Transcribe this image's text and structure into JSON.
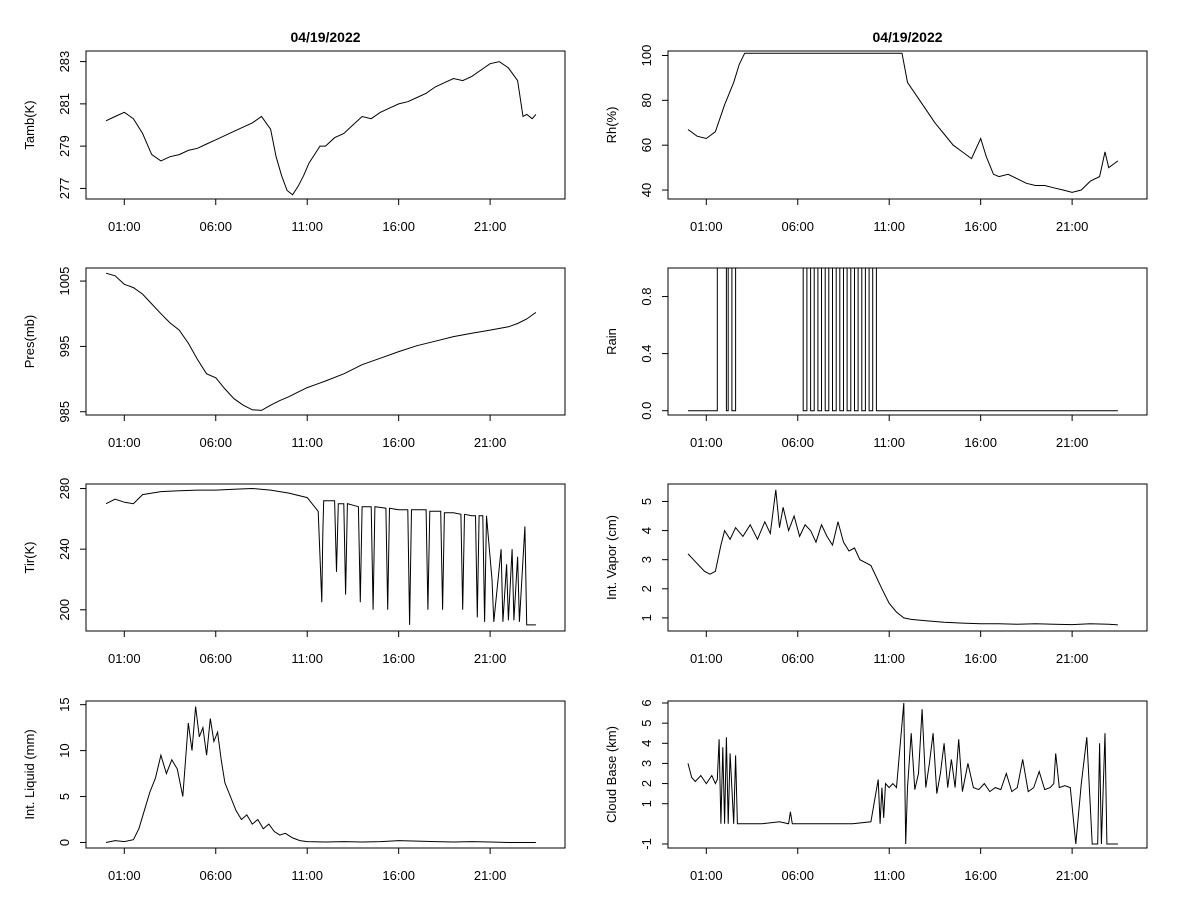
{
  "chart_data": [
    {
      "type": "line",
      "title": "04/19/2022",
      "xlabel": "",
      "ylabel": "Tamb(K)",
      "xlim": [
        0,
        24
      ],
      "ylim": [
        276.5,
        283.5
      ],
      "yticks": [
        277,
        279,
        281,
        283
      ],
      "ytick_labels": [
        "277",
        "279",
        "281",
        "283"
      ],
      "x_ticks": [
        "01:00",
        "06:00",
        "11:00",
        "16:00",
        "21:00"
      ],
      "grid": false,
      "series": [
        {
          "x": [
            0,
            0.5,
            1,
            1.5,
            2,
            2.5,
            3,
            3.5,
            4,
            4.5,
            5,
            5.5,
            6,
            6.5,
            7,
            7.5,
            8,
            8.5,
            9,
            9.3,
            9.6,
            9.9,
            10.2,
            10.5,
            10.8,
            11.1,
            11.4,
            11.7,
            12,
            12.5,
            13,
            13.5,
            14,
            14.5,
            15,
            15.5,
            16,
            16.5,
            17,
            17.5,
            18,
            18.5,
            19,
            19.5,
            20,
            20.5,
            21,
            21.5,
            22,
            22.5,
            22.8,
            23,
            23.3,
            23.5
          ],
          "y": [
            280.2,
            280.4,
            280.6,
            280.3,
            279.6,
            278.6,
            278.3,
            278.5,
            278.6,
            278.8,
            278.9,
            279.1,
            279.3,
            279.5,
            279.7,
            279.9,
            280.1,
            280.4,
            279.8,
            278.5,
            277.6,
            276.9,
            276.7,
            277.1,
            277.6,
            278.2,
            278.6,
            279.0,
            279.0,
            279.4,
            279.6,
            280.0,
            280.4,
            280.3,
            280.6,
            280.8,
            281.0,
            281.1,
            281.3,
            281.5,
            281.8,
            282.0,
            282.2,
            282.1,
            282.3,
            282.6,
            282.9,
            283.0,
            282.7,
            282.1,
            280.4,
            280.5,
            280.3,
            280.5
          ]
        }
      ]
    },
    {
      "type": "line",
      "title": "04/19/2022",
      "xlabel": "",
      "ylabel": "Rh(%)",
      "xlim": [
        0,
        24
      ],
      "ylim": [
        36,
        102
      ],
      "yticks": [
        40,
        60,
        80,
        100
      ],
      "ytick_labels": [
        "40",
        "60",
        "80",
        "100"
      ],
      "x_ticks": [
        "01:00",
        "06:00",
        "11:00",
        "16:00",
        "21:00"
      ],
      "grid": false,
      "series": [
        {
          "x": [
            0,
            0.5,
            1,
            1.5,
            2,
            2.5,
            2.8,
            3.1,
            11.7,
            12,
            12.5,
            13,
            13.5,
            14,
            14.5,
            15,
            15.5,
            16,
            16.3,
            16.7,
            17,
            17.5,
            18,
            18.5,
            19,
            19.5,
            20,
            20.5,
            21,
            21.5,
            22,
            22.5,
            22.8,
            23,
            23.5
          ],
          "y": [
            67,
            64,
            63,
            66,
            78,
            88,
            96,
            101,
            101,
            88,
            82,
            76,
            70,
            65,
            60,
            57,
            54,
            63,
            55,
            47,
            46,
            47,
            45,
            43,
            42,
            42,
            41,
            40,
            39,
            40,
            44,
            46,
            57,
            50,
            53
          ]
        }
      ]
    },
    {
      "type": "line",
      "title": "",
      "xlabel": "",
      "ylabel": "Pres(mb)",
      "xlim": [
        0,
        24
      ],
      "ylim": [
        984.5,
        1007
      ],
      "yticks": [
        985,
        995,
        1005
      ],
      "ytick_labels": [
        "985",
        "995",
        "1005"
      ],
      "x_ticks": [
        "01:00",
        "06:00",
        "11:00",
        "16:00",
        "21:00"
      ],
      "grid": false,
      "series": [
        {
          "x": [
            0,
            0.5,
            1,
            1.5,
            2,
            2.5,
            3,
            3.5,
            4,
            4.5,
            5,
            5.5,
            6,
            6.5,
            7,
            7.5,
            8,
            8.5,
            9,
            9.5,
            10,
            10.5,
            11,
            11.5,
            12,
            13,
            14,
            15,
            16,
            17,
            18,
            19,
            20,
            21,
            22,
            22.5,
            23,
            23.5
          ],
          "y": [
            1006.2,
            1005.8,
            1004.5,
            1004,
            1003,
            1001.5,
            1000,
            998.6,
            997.5,
            995.5,
            993,
            990.8,
            990.2,
            988.5,
            987,
            986,
            985.3,
            985.2,
            986,
            986.7,
            987.3,
            988,
            988.7,
            989.2,
            989.7,
            990.8,
            992.2,
            993.2,
            994.2,
            995.1,
            995.8,
            996.5,
            997,
            997.5,
            998,
            998.5,
            999.2,
            1000.2
          ]
        }
      ]
    },
    {
      "type": "line",
      "title": "",
      "xlabel": "",
      "ylabel": "Rain",
      "xlim": [
        0,
        24
      ],
      "ylim": [
        -0.03,
        1.0
      ],
      "yticks": [
        0.0,
        0.4,
        0.8
      ],
      "ytick_labels": [
        "0.0",
        "0.4",
        "0.8"
      ],
      "x_ticks": [
        "01:00",
        "06:00",
        "11:00",
        "16:00",
        "21:00"
      ],
      "grid": false,
      "series": [
        {
          "x": [
            0,
            1.6,
            1.6,
            2.1,
            2.1,
            2.2,
            2.2,
            2.4,
            2.4,
            2.6,
            2.6,
            2.8,
            2.8,
            6.3,
            6.3,
            6.5,
            6.5,
            6.7,
            6.7,
            6.9,
            6.9,
            7.1,
            7.1,
            7.3,
            7.3,
            7.5,
            7.5,
            7.7,
            7.7,
            7.9,
            7.9,
            8.1,
            8.1,
            8.3,
            8.3,
            8.5,
            8.5,
            8.7,
            8.7,
            8.9,
            8.9,
            9.1,
            9.1,
            9.3,
            9.3,
            9.5,
            9.5,
            9.7,
            9.7,
            9.9,
            9.9,
            10.1,
            10.1,
            10.3,
            10.3,
            23.5
          ],
          "y": [
            0,
            0,
            1,
            1,
            0,
            0,
            1,
            1,
            0,
            0,
            1,
            1,
            1,
            1,
            0,
            0,
            1,
            1,
            0,
            0,
            1,
            1,
            0,
            0,
            1,
            1,
            0,
            0,
            1,
            1,
            0,
            0,
            1,
            1,
            0,
            0,
            1,
            1,
            0,
            0,
            1,
            1,
            0,
            0,
            1,
            1,
            0,
            0,
            1,
            1,
            0,
            0,
            1,
            1,
            0,
            0
          ]
        }
      ]
    },
    {
      "type": "line",
      "title": "",
      "xlabel": "",
      "ylabel": "Tir(K)",
      "xlim": [
        0,
        24
      ],
      "ylim": [
        186,
        283
      ],
      "yticks": [
        200,
        240,
        280
      ],
      "ytick_labels": [
        "200",
        "240",
        "280"
      ],
      "x_ticks": [
        "01:00",
        "06:00",
        "11:00",
        "16:00",
        "21:00"
      ],
      "grid": false,
      "series": [
        {
          "x": [
            0,
            0.5,
            1,
            1.5,
            2,
            3,
            4,
            5,
            6,
            7,
            8,
            9,
            10,
            11,
            11.6,
            11.8,
            11.85,
            11.9,
            12.5,
            12.6,
            12.7,
            13,
            13.1,
            13.2,
            13.8,
            13.9,
            14,
            14.5,
            14.6,
            14.7,
            15.3,
            15.4,
            15.5,
            16,
            16.5,
            16.6,
            16.7,
            17.5,
            17.6,
            17.7,
            18.3,
            18.4,
            18.5,
            19,
            19.4,
            19.5,
            19.6,
            20,
            20.2,
            20.3,
            20.4,
            20.6,
            20.7,
            20.8,
            21.1,
            21.2,
            21.6,
            21.7,
            21.9,
            22,
            22.2,
            22.3,
            22.5,
            22.6,
            22.9,
            23.0,
            23.5
          ],
          "y": [
            270,
            273,
            271,
            270,
            276,
            278,
            278.5,
            279,
            279,
            279.5,
            280,
            279,
            277,
            274,
            265,
            205,
            250,
            272,
            272,
            225,
            270,
            270,
            210,
            270,
            268,
            205,
            268,
            268,
            200,
            268,
            267,
            200,
            267,
            266,
            266,
            190,
            266,
            266,
            200,
            265,
            265,
            200,
            264,
            264,
            263,
            200,
            263,
            262,
            262,
            195,
            262,
            262,
            192,
            262,
            220,
            192,
            240,
            192,
            230,
            193,
            240,
            193,
            235,
            192,
            255,
            190,
            190
          ]
        }
      ]
    },
    {
      "type": "line",
      "title": "",
      "xlabel": "",
      "ylabel": "Int. Vapor (cm)",
      "xlim": [
        0,
        24
      ],
      "ylim": [
        0.55,
        5.6
      ],
      "yticks": [
        1,
        2,
        3,
        4,
        5
      ],
      "ytick_labels": [
        "1",
        "2",
        "3",
        "4",
        "5"
      ],
      "x_ticks": [
        "01:00",
        "06:00",
        "11:00",
        "16:00",
        "21:00"
      ],
      "grid": false,
      "series": [
        {
          "x": [
            0,
            0.3,
            0.6,
            0.9,
            1.2,
            1.5,
            1.8,
            2.0,
            2.3,
            2.6,
            3.0,
            3.4,
            3.8,
            4.2,
            4.5,
            4.8,
            5.0,
            5.2,
            5.5,
            5.8,
            6.1,
            6.4,
            6.7,
            7.0,
            7.3,
            7.6,
            7.9,
            8.2,
            8.5,
            8.8,
            9.1,
            9.4,
            9.7,
            10.0,
            10.3,
            10.6,
            11.0,
            11.4,
            11.8,
            12.2,
            13,
            14,
            15,
            16,
            17,
            18,
            19,
            20,
            21,
            22,
            23,
            23.5
          ],
          "y": [
            3.2,
            3.0,
            2.8,
            2.6,
            2.5,
            2.6,
            3.5,
            4.0,
            3.7,
            4.1,
            3.8,
            4.2,
            3.7,
            4.3,
            3.9,
            5.4,
            4.1,
            4.8,
            4.0,
            4.5,
            3.8,
            4.2,
            4.0,
            3.6,
            4.2,
            3.8,
            3.5,
            4.3,
            3.6,
            3.3,
            3.4,
            3.0,
            2.9,
            2.8,
            2.4,
            2.0,
            1.5,
            1.2,
            1.0,
            0.95,
            0.9,
            0.85,
            0.82,
            0.8,
            0.8,
            0.78,
            0.8,
            0.78,
            0.77,
            0.8,
            0.78,
            0.76
          ]
        }
      ]
    },
    {
      "type": "line",
      "title": "",
      "xlabel": "",
      "ylabel": "Int. Liquid (mm)",
      "xlim": [
        0,
        24
      ],
      "ylim": [
        -0.6,
        15.4
      ],
      "yticks": [
        0,
        5,
        10,
        15
      ],
      "ytick_labels": [
        "0",
        "5",
        "10",
        "15"
      ],
      "x_ticks": [
        "01:00",
        "06:00",
        "11:00",
        "16:00",
        "21:00"
      ],
      "grid": false,
      "series": [
        {
          "x": [
            0,
            0.5,
            1,
            1.5,
            1.8,
            2.1,
            2.4,
            2.7,
            3.0,
            3.3,
            3.6,
            3.9,
            4.2,
            4.5,
            4.7,
            4.9,
            5.1,
            5.3,
            5.5,
            5.7,
            5.9,
            6.1,
            6.3,
            6.5,
            6.8,
            7.1,
            7.4,
            7.7,
            8.0,
            8.3,
            8.6,
            8.9,
            9.2,
            9.5,
            9.8,
            10.2,
            10.6,
            11,
            12,
            13,
            14,
            15,
            16,
            17,
            18,
            19,
            20,
            21,
            22,
            23,
            23.5
          ],
          "y": [
            0,
            0.2,
            0.1,
            0.3,
            1.5,
            3.5,
            5.5,
            7.0,
            9.5,
            7.5,
            9.0,
            8.0,
            5.0,
            13.0,
            10.0,
            14.8,
            11.5,
            12.5,
            9.5,
            13.5,
            11.0,
            12.0,
            9.0,
            6.5,
            5.0,
            3.5,
            2.5,
            3.0,
            2.0,
            2.5,
            1.5,
            2.0,
            1.2,
            0.8,
            1.0,
            0.5,
            0.2,
            0.1,
            0.05,
            0.1,
            0.05,
            0.1,
            0.2,
            0.15,
            0.1,
            0.05,
            0.1,
            0.05,
            0,
            0,
            0
          ]
        }
      ]
    },
    {
      "type": "line",
      "title": "",
      "xlabel": "",
      "ylabel": "Cloud Base (km)",
      "xlim": [
        0,
        24
      ],
      "ylim": [
        -1.2,
        6.1
      ],
      "yticks": [
        -1,
        1,
        2,
        3,
        4,
        5,
        6
      ],
      "ytick_labels": [
        "-1",
        "1",
        "2",
        "3",
        "4",
        "5",
        "6"
      ],
      "x_ticks": [
        "01:00",
        "06:00",
        "11:00",
        "16:00",
        "21:00"
      ],
      "grid": false,
      "series": [
        {
          "x": [
            0,
            0.2,
            0.4,
            0.7,
            1.0,
            1.3,
            1.5,
            1.6,
            1.7,
            1.8,
            1.9,
            2.0,
            2.1,
            2.2,
            2.3,
            2.5,
            2.6,
            2.7,
            2.8,
            3,
            4,
            5,
            5.5,
            5.6,
            5.7,
            6,
            7,
            8,
            9,
            10,
            10.4,
            10.5,
            10.6,
            10.7,
            10.8,
            11.0,
            11.1,
            11.2,
            11.4,
            11.8,
            11.9,
            12.0,
            12.2,
            12.4,
            12.6,
            12.8,
            13.0,
            13.2,
            13.4,
            13.6,
            13.8,
            14.0,
            14.2,
            14.4,
            14.6,
            14.8,
            15.0,
            15.3,
            15.6,
            15.9,
            16.2,
            16.5,
            16.8,
            17.1,
            17.4,
            17.7,
            18.0,
            18.3,
            18.6,
            18.9,
            19.2,
            19.5,
            19.8,
            20.0,
            20.1,
            20.3,
            20.6,
            20.9,
            21.2,
            21.5,
            21.8,
            22.1,
            22.4,
            22.5,
            22.6,
            22.8,
            22.9,
            23.0,
            23.1,
            23.5
          ],
          "y": [
            3.0,
            2.3,
            2.1,
            2.4,
            2.0,
            2.4,
            2.0,
            2.2,
            4.2,
            0,
            3.8,
            0,
            4.3,
            0,
            3.5,
            0,
            3.4,
            0,
            0,
            0,
            0,
            0.1,
            0,
            0.6,
            0,
            0,
            0,
            0,
            0,
            0.1,
            2.2,
            0,
            1.8,
            0.3,
            2.0,
            1.8,
            1.9,
            2.0,
            1.8,
            6.0,
            -1,
            1.8,
            4.5,
            1.7,
            2.5,
            5.7,
            1.8,
            3.0,
            4.5,
            1.5,
            2.5,
            4.0,
            1.8,
            3.2,
            1.8,
            4.2,
            1.6,
            3.0,
            1.8,
            1.7,
            2.0,
            1.6,
            1.8,
            1.7,
            2.5,
            1.6,
            1.8,
            3.2,
            1.6,
            1.8,
            2.6,
            1.7,
            1.8,
            2.0,
            3.5,
            1.8,
            1.9,
            1.8,
            -1,
            2.0,
            4.3,
            -1,
            -1,
            4.0,
            -1,
            4.5,
            -1,
            -1,
            -1,
            -1
          ]
        }
      ]
    }
  ]
}
